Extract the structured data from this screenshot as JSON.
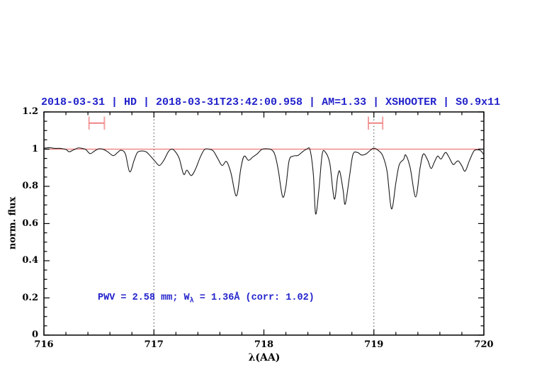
{
  "annotation": {
    "prefix": "PWV = 2.58 mm; W",
    "subscript": "λ",
    "suffix": " = 1.36Å (corr: 1.02)",
    "color": "#2222cc"
  },
  "chart_data": {
    "type": "line",
    "title": "2018-03-31 | HD | 2018-03-31T23:42:00.958 | AM=1.33 | XSHOOTER | S0.9x11",
    "title_color": "#2222cc",
    "xlabel": "λ(AA)",
    "ylabel": "norm. flux",
    "xlim": [
      716,
      720
    ],
    "ylim": [
      0,
      1.2
    ],
    "grid": "off",
    "legend": "none",
    "x_ticks": {
      "major": [
        716,
        717,
        718,
        719,
        720
      ],
      "labels": [
        "716",
        "717",
        "718",
        "719",
        "720"
      ],
      "minor_step": 0.2
    },
    "y_ticks": {
      "major": [
        0,
        0.2,
        0.4,
        0.6,
        0.8,
        1.0,
        1.2
      ],
      "labels": [
        "0",
        "0.2",
        "0.4",
        "0.6",
        "0.8",
        "1",
        "1.2"
      ],
      "minor_step": 0.05
    },
    "dotted_vlines": {
      "x": [
        717,
        719
      ],
      "color": "#444444"
    },
    "continuum_line": {
      "y": 1.0,
      "color": "#f07878"
    },
    "range_markers": {
      "cap_color": "#f4a0a0",
      "bar_color": "#ee8484",
      "bar_y": 1.14,
      "cap_top": 1.175,
      "cap_bottom": 1.105,
      "items": [
        {
          "x_min": 716.41,
          "x_max": 716.55
        },
        {
          "x_min": 718.95,
          "x_max": 719.08
        }
      ]
    },
    "series": [
      {
        "name": "telluric-spectrum",
        "color": "#1c1c1c",
        "points": [
          [
            716.0,
            1.005
          ],
          [
            716.05,
            1.008
          ],
          [
            716.1,
            1.004
          ],
          [
            716.15,
            1.004
          ],
          [
            716.2,
            0.998
          ],
          [
            716.23,
            0.986
          ],
          [
            716.27,
            0.996
          ],
          [
            716.31,
            1.006
          ],
          [
            716.34,
            1.005
          ],
          [
            716.38,
            0.998
          ],
          [
            716.42,
            0.976
          ],
          [
            716.46,
            0.99
          ],
          [
            716.5,
            1.002
          ],
          [
            716.54,
            0.999
          ],
          [
            716.58,
            0.986
          ],
          [
            716.63,
            0.965
          ],
          [
            716.67,
            0.982
          ],
          [
            716.7,
            0.994
          ],
          [
            716.74,
            0.975
          ],
          [
            716.78,
            0.878
          ],
          [
            716.82,
            0.94
          ],
          [
            716.85,
            0.982
          ],
          [
            716.89,
            0.99
          ],
          [
            716.93,
            0.985
          ],
          [
            716.97,
            0.962
          ],
          [
            717.01,
            0.935
          ],
          [
            717.05,
            0.912
          ],
          [
            717.09,
            0.94
          ],
          [
            717.13,
            0.985
          ],
          [
            717.16,
            1.0
          ],
          [
            717.19,
            0.99
          ],
          [
            717.23,
            0.95
          ],
          [
            717.27,
            0.865
          ],
          [
            717.3,
            0.887
          ],
          [
            717.34,
            0.858
          ],
          [
            717.38,
            0.895
          ],
          [
            717.42,
            0.955
          ],
          [
            717.46,
            0.998
          ],
          [
            717.5,
            1.0
          ],
          [
            717.54,
            0.99
          ],
          [
            717.58,
            0.95
          ],
          [
            717.62,
            0.912
          ],
          [
            717.66,
            0.933
          ],
          [
            717.7,
            0.873
          ],
          [
            717.75,
            0.748
          ],
          [
            717.79,
            0.895
          ],
          [
            717.82,
            0.962
          ],
          [
            717.86,
            0.94
          ],
          [
            717.9,
            0.958
          ],
          [
            717.94,
            0.975
          ],
          [
            717.98,
            0.998
          ],
          [
            718.03,
            1.002
          ],
          [
            718.07,
            0.996
          ],
          [
            718.1,
            0.97
          ],
          [
            718.13,
            0.89
          ],
          [
            718.17,
            0.744
          ],
          [
            718.2,
            0.8
          ],
          [
            718.23,
            0.94
          ],
          [
            718.27,
            0.963
          ],
          [
            718.31,
            0.966
          ],
          [
            718.35,
            0.985
          ],
          [
            718.39,
            1.0
          ],
          [
            718.42,
            0.995
          ],
          [
            718.45,
            0.86
          ],
          [
            718.47,
            0.652
          ],
          [
            718.5,
            0.78
          ],
          [
            718.53,
            0.972
          ],
          [
            718.56,
            0.983
          ],
          [
            718.6,
            0.92
          ],
          [
            718.64,
            0.732
          ],
          [
            718.67,
            0.85
          ],
          [
            718.69,
            0.88
          ],
          [
            718.72,
            0.78
          ],
          [
            718.74,
            0.705
          ],
          [
            718.78,
            0.86
          ],
          [
            718.81,
            0.972
          ],
          [
            718.85,
            0.982
          ],
          [
            718.89,
            0.968
          ],
          [
            718.93,
            0.975
          ],
          [
            718.97,
            0.995
          ],
          [
            719.0,
            1.005
          ],
          [
            719.04,
            0.993
          ],
          [
            719.08,
            0.965
          ],
          [
            719.12,
            0.88
          ],
          [
            719.16,
            0.679
          ],
          [
            719.2,
            0.82
          ],
          [
            719.23,
            0.915
          ],
          [
            719.27,
            0.945
          ],
          [
            719.29,
            0.968
          ],
          [
            719.33,
            0.9
          ],
          [
            719.38,
            0.743
          ],
          [
            719.42,
            0.9
          ],
          [
            719.45,
            0.974
          ],
          [
            719.49,
            0.94
          ],
          [
            719.52,
            0.896
          ],
          [
            719.55,
            0.93
          ],
          [
            719.58,
            0.963
          ],
          [
            719.61,
            0.947
          ],
          [
            719.65,
            0.982
          ],
          [
            719.68,
            0.96
          ],
          [
            719.72,
            0.918
          ],
          [
            719.75,
            0.932
          ],
          [
            719.77,
            0.936
          ],
          [
            719.8,
            0.91
          ],
          [
            719.83,
            0.882
          ],
          [
            719.87,
            0.94
          ],
          [
            719.91,
            0.99
          ],
          [
            719.94,
            0.996
          ],
          [
            719.97,
            0.992
          ],
          [
            720.0,
            0.97
          ]
        ]
      }
    ]
  }
}
